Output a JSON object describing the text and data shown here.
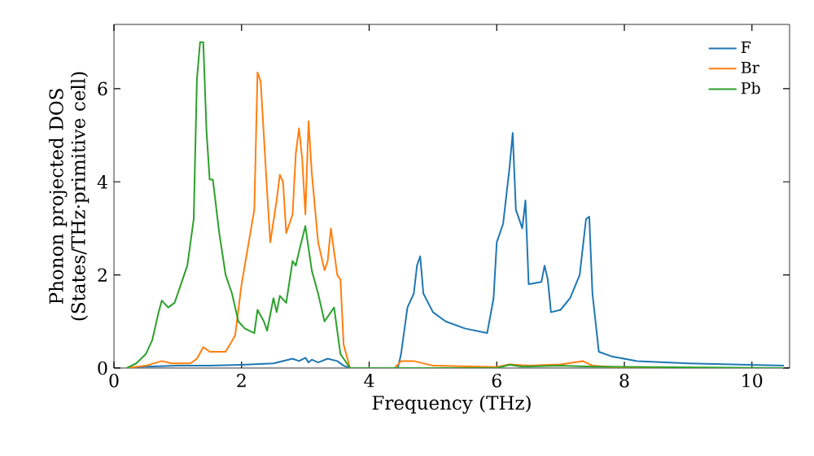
{
  "chart_data": {
    "type": "line",
    "xlabel": "Frequency (THz)",
    "ylabel": "Phonon projected DOS (States/THz·primitive cell)",
    "xlim": [
      0,
      10.59
    ],
    "ylim": [
      0,
      7.38
    ],
    "xticks": [
      0,
      2,
      4,
      6,
      8,
      10
    ],
    "yticks": [
      0,
      2,
      4,
      6
    ],
    "legend": "top right",
    "marker": "none",
    "line_style": "solid",
    "series": [
      {
        "name": "F",
        "color": "#1f77b4",
        "x": [
          0.2,
          0.5,
          1.0,
          1.5,
          2.0,
          2.5,
          2.8,
          2.9,
          3.0,
          3.05,
          3.1,
          3.2,
          3.35,
          3.5,
          3.6,
          3.7,
          4.45,
          4.5,
          4.6,
          4.7,
          4.75,
          4.8,
          4.85,
          5.0,
          5.2,
          5.5,
          5.85,
          5.95,
          6.0,
          6.1,
          6.2,
          6.25,
          6.3,
          6.4,
          6.45,
          6.5,
          6.7,
          6.75,
          6.8,
          6.85,
          7.0,
          7.15,
          7.3,
          7.4,
          7.45,
          7.5,
          7.6,
          7.8,
          8.2,
          9.0,
          10.5
        ],
        "values": [
          0,
          0.03,
          0.05,
          0.05,
          0.07,
          0.1,
          0.2,
          0.15,
          0.22,
          0.12,
          0.18,
          0.12,
          0.2,
          0.15,
          0.05,
          0,
          0,
          0.3,
          1.3,
          1.6,
          2.2,
          2.4,
          1.6,
          1.2,
          1.0,
          0.85,
          0.75,
          1.5,
          2.7,
          3.1,
          4.3,
          5.05,
          3.4,
          3.0,
          3.6,
          1.8,
          1.85,
          2.2,
          1.9,
          1.2,
          1.25,
          1.5,
          2.0,
          3.2,
          3.25,
          1.6,
          0.35,
          0.25,
          0.15,
          0.1,
          0.05
        ]
      },
      {
        "name": "Br",
        "color": "#ff7f0e",
        "x": [
          0.2,
          0.5,
          0.75,
          0.9,
          1.2,
          1.3,
          1.4,
          1.5,
          1.75,
          1.9,
          2.0,
          2.05,
          2.15,
          2.2,
          2.25,
          2.3,
          2.4,
          2.45,
          2.55,
          2.6,
          2.65,
          2.7,
          2.8,
          2.85,
          2.9,
          2.95,
          3.0,
          3.05,
          3.1,
          3.2,
          3.3,
          3.35,
          3.4,
          3.5,
          3.55,
          3.6,
          3.7,
          4.4,
          4.5,
          4.7,
          5.0,
          6.0,
          6.2,
          6.5,
          7.0,
          7.35,
          7.5,
          8.0,
          10.5
        ],
        "values": [
          0,
          0.05,
          0.15,
          0.1,
          0.1,
          0.2,
          0.45,
          0.35,
          0.35,
          0.7,
          1.8,
          2.2,
          3.0,
          3.4,
          6.35,
          6.15,
          3.8,
          2.7,
          3.6,
          4.15,
          4.0,
          2.9,
          3.3,
          4.6,
          5.15,
          4.5,
          3.3,
          5.3,
          4.2,
          2.7,
          2.1,
          2.3,
          3.0,
          2.0,
          1.9,
          0.5,
          0,
          0,
          0.15,
          0.15,
          0.05,
          0.02,
          0.08,
          0.05,
          0.08,
          0.15,
          0.05,
          0,
          0
        ]
      },
      {
        "name": "Pb",
        "color": "#2ca02c",
        "x": [
          0.2,
          0.35,
          0.5,
          0.6,
          0.7,
          0.75,
          0.85,
          0.95,
          1.05,
          1.15,
          1.25,
          1.3,
          1.35,
          1.4,
          1.45,
          1.5,
          1.55,
          1.65,
          1.75,
          1.85,
          1.95,
          2.05,
          2.2,
          2.25,
          2.35,
          2.4,
          2.5,
          2.55,
          2.6,
          2.7,
          2.8,
          2.85,
          2.9,
          3.0,
          3.1,
          3.2,
          3.3,
          3.45,
          3.55,
          3.6,
          3.7,
          6.0,
          6.2,
          6.4,
          7.0,
          7.5,
          10.5
        ],
        "values": [
          0,
          0.1,
          0.3,
          0.6,
          1.2,
          1.45,
          1.3,
          1.4,
          1.8,
          2.2,
          3.2,
          6.2,
          7.0,
          7.0,
          5.1,
          4.05,
          4.05,
          2.9,
          2.0,
          1.6,
          1.0,
          0.85,
          0.75,
          1.25,
          1.0,
          0.8,
          1.5,
          1.2,
          1.55,
          1.4,
          2.3,
          2.2,
          2.5,
          3.05,
          2.1,
          1.6,
          1.0,
          1.3,
          0.3,
          0.2,
          0,
          0,
          0.07,
          0.03,
          0.05,
          0.03,
          0
        ]
      }
    ]
  }
}
